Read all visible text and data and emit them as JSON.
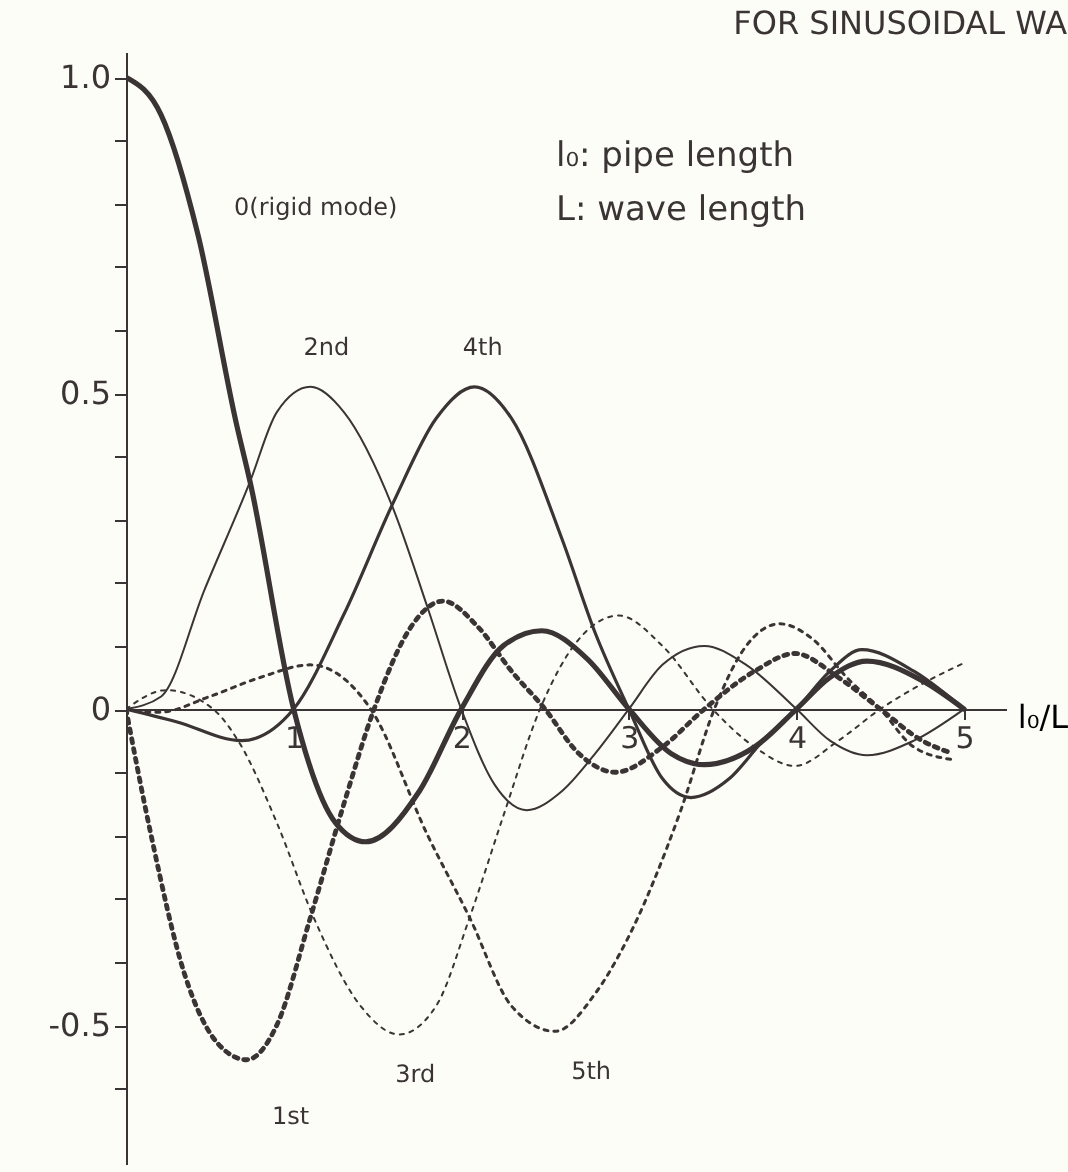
{
  "chart_data": {
    "type": "line",
    "title": "FOR SINUSOIDAL WA",
    "xlabel": "l₀/L",
    "annotations": [
      "l₀: pipe length",
      "L: wave length"
    ],
    "xlim": [
      0,
      5.25
    ],
    "xticks": [
      1,
      2,
      3,
      4,
      5
    ],
    "ylim": [
      -0.72,
      1.04
    ],
    "yticks": [
      {
        "value": 1.0,
        "label": "1.0"
      },
      {
        "value": 0.9,
        "label": null
      },
      {
        "value": 0.8,
        "label": null
      },
      {
        "value": 0.7,
        "label": null
      },
      {
        "value": 0.6,
        "label": null
      },
      0.5,
      {
        "value": 0.4,
        "label": null
      },
      {
        "value": 0.3,
        "label": null
      },
      {
        "value": 0.2,
        "label": null
      },
      {
        "value": 0.1,
        "label": null
      },
      0,
      {
        "value": -0.1,
        "label": null
      },
      {
        "value": -0.2,
        "label": null
      },
      {
        "value": -0.3,
        "label": null
      },
      {
        "value": -0.4,
        "label": null
      },
      -0.5,
      {
        "value": -0.6,
        "label": null
      }
    ],
    "grid": false,
    "series": [
      {
        "name": "0(rigid mode)",
        "color": "#3a3434",
        "line_style": "solid",
        "x": [
          0,
          0.21,
          0.43,
          0.66,
          0.74,
          1,
          1.25,
          1.43,
          1.75,
          2,
          2.25,
          2.48,
          2.75,
          3,
          3.25,
          3.45,
          3.75,
          4,
          4.2,
          4.42,
          4.75,
          5
        ],
        "values": [
          1.0,
          0.94,
          0.75,
          0.45,
          0.36,
          0,
          -0.18,
          -0.21,
          -0.13,
          0,
          0.1,
          0.124,
          0.08,
          0,
          -0.07,
          -0.088,
          -0.06,
          0,
          0.05,
          0.076,
          0.045,
          0
        ]
      },
      {
        "name": "1st",
        "color": "#3a3434",
        "line_style": "dotted",
        "x": [
          0,
          0.15,
          0.35,
          0.55,
          0.72,
          0.9,
          1.1,
          1.3,
          1.48,
          1.7,
          1.89,
          2.1,
          2.3,
          2.5,
          2.7,
          2.92,
          3.2,
          3.45,
          3.75,
          3.99,
          4.25,
          4.5,
          4.75,
          4.93
        ],
        "values": [
          0,
          -0.2,
          -0.42,
          -0.53,
          -0.555,
          -0.5,
          -0.33,
          -0.15,
          0,
          0.13,
          0.171,
          0.13,
          0.06,
          0,
          -0.07,
          -0.1,
          -0.06,
          0,
          0.06,
          0.088,
          0.05,
          0,
          -0.05,
          -0.07
        ]
      },
      {
        "name": "2nd",
        "color": "#3a3434",
        "line_style": "solid",
        "x": [
          0,
          0.21,
          0.47,
          0.74,
          0.9,
          1.1,
          1.3,
          1.59,
          1.8,
          2,
          2.2,
          2.39,
          2.6,
          2.8,
          3,
          3.2,
          3.45,
          3.7,
          4,
          4.2,
          4.42,
          4.7,
          5
        ],
        "values": [
          0,
          0.02,
          0.19,
          0.36,
          0.47,
          0.51,
          0.47,
          0.32,
          0.16,
          0,
          -0.12,
          -0.16,
          -0.13,
          -0.07,
          0,
          0.07,
          0.1,
          0.07,
          0,
          -0.05,
          -0.073,
          -0.05,
          0
        ]
      },
      {
        "name": "3rd",
        "color": "#3a3434",
        "line_style": "dotted",
        "x": [
          0,
          0.24,
          0.52,
          0.68,
          0.9,
          1.12,
          1.4,
          1.63,
          1.85,
          2.05,
          2.25,
          2.47,
          2.7,
          2.94,
          3.2,
          3.5,
          3.75,
          3.99,
          4.25,
          4.5,
          4.75,
          5
        ],
        "values": [
          0,
          0.03,
          0,
          -0.055,
          -0.18,
          -0.33,
          -0.47,
          -0.515,
          -0.47,
          -0.33,
          -0.17,
          0,
          0.11,
          0.148,
          0.1,
          0,
          -0.06,
          -0.09,
          -0.05,
          0,
          0.04,
          0.073
        ]
      },
      {
        "name": "4th",
        "color": "#3a3434",
        "line_style": "solid",
        "x": [
          0,
          0.3,
          0.69,
          1,
          1.3,
          1.6,
          1.85,
          2.08,
          2.3,
          2.6,
          2.8,
          3,
          3.2,
          3.37,
          3.6,
          3.8,
          4,
          4.2,
          4.39,
          4.7,
          5
        ],
        "values": [
          0,
          -0.02,
          -0.05,
          0,
          0.15,
          0.33,
          0.46,
          0.51,
          0.46,
          0.27,
          0.12,
          0,
          -0.11,
          -0.14,
          -0.11,
          -0.05,
          0,
          0.06,
          0.094,
          0.06,
          0
        ]
      },
      {
        "name": "5th",
        "color": "#3a3434",
        "line_style": "dotted",
        "x": [
          0,
          0.2,
          0.5,
          0.8,
          1.1,
          1.46,
          1.8,
          2.05,
          2.3,
          2.56,
          2.8,
          2.98,
          3.31,
          3.51,
          3.7,
          3.9,
          4.1,
          4.3,
          4.5,
          4.7,
          4.93
        ],
        "values": [
          0,
          -0.005,
          0.02,
          0.05,
          0.07,
          0,
          -0.2,
          -0.33,
          -0.47,
          -0.51,
          -0.45,
          -0.37,
          -0.16,
          0,
          0.1,
          0.135,
          0.11,
          0.05,
          0,
          -0.06,
          -0.08
        ]
      }
    ]
  }
}
